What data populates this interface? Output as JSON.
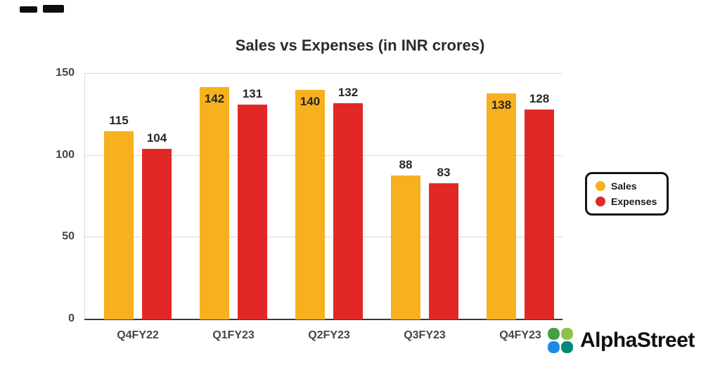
{
  "chart_data": {
    "type": "bar",
    "title": "Sales vs Expenses (in INR crores)",
    "categories": [
      "Q4FY22",
      "Q1FY23",
      "Q2FY23",
      "Q3FY23",
      "Q4FY23"
    ],
    "series": [
      {
        "name": "Sales",
        "color": "#F7B01E",
        "values": [
          115,
          142,
          140,
          88,
          138
        ]
      },
      {
        "name": "Expenses",
        "color": "#E22727",
        "values": [
          104,
          131,
          132,
          83,
          128
        ]
      }
    ],
    "xlabel": "",
    "ylabel": "",
    "ylim": [
      0,
      150
    ],
    "yticks": [
      0,
      50,
      100,
      150
    ],
    "grid": "horizontal",
    "legend_position": "right",
    "value_labels": "shown above bars, inside bar when near top of axis"
  },
  "legend": {
    "items": [
      {
        "label": "Sales",
        "color": "#F7B01E"
      },
      {
        "label": "Expenses",
        "color": "#E22727"
      }
    ]
  },
  "branding": {
    "name": "AlphaStreet",
    "logo_icon": "alphastreet-four-petal-flower-icon",
    "icon_colors": [
      "#43A047",
      "#8BC34A",
      "#1E88E5",
      "#00897B"
    ]
  },
  "colors": {
    "title_text": "#2b2b2b",
    "axis_text": "#454545",
    "gridline": "#dadada",
    "baseline": "#3a3a3a",
    "background": "#ffffff"
  }
}
